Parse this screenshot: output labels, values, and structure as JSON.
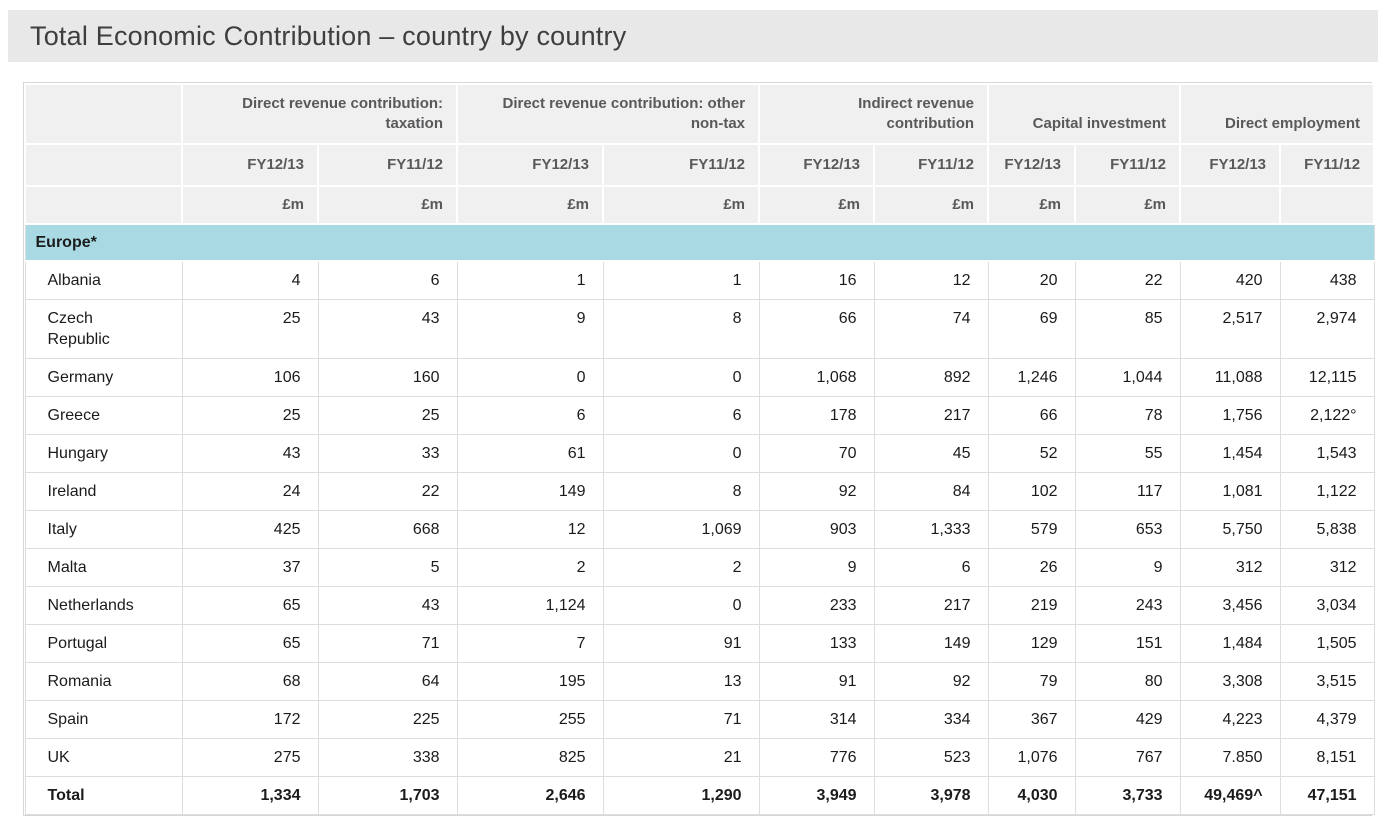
{
  "page_title": "Total Economic Contribution – country by country",
  "table": {
    "groups": [
      {
        "label": "Direct revenue contribution: taxation"
      },
      {
        "label": "Direct revenue contribution: other non-tax"
      },
      {
        "label": "Indirect revenue contribution"
      },
      {
        "label": "Capital investment"
      },
      {
        "label": "Direct employment"
      }
    ],
    "period_headers": [
      "FY12/13",
      "FY11/12",
      "FY12/13",
      "FY11/12",
      "FY12/13",
      "FY11/12",
      "FY12/13",
      "FY11/12",
      "FY12/13",
      "FY11/12"
    ],
    "unit_headers": [
      "£m",
      "£m",
      "£m",
      "£m",
      "£m",
      "£m",
      "£m",
      "£m",
      "",
      ""
    ],
    "section_label": "Europe*",
    "rows": [
      {
        "country": "Albania",
        "values": [
          "4",
          "6",
          "1",
          "1",
          "16",
          "12",
          "20",
          "22",
          "420",
          "438"
        ]
      },
      {
        "country": "Czech Republic",
        "values": [
          "25",
          "43",
          "9",
          "8",
          "66",
          "74",
          "69",
          "85",
          "2,517",
          "2,974"
        ]
      },
      {
        "country": "Germany",
        "values": [
          "106",
          "160",
          "0",
          "0",
          "1,068",
          "892",
          "1,246",
          "1,044",
          "11,088",
          "12,115"
        ]
      },
      {
        "country": "Greece",
        "values": [
          "25",
          "25",
          "6",
          "6",
          "178",
          "217",
          "66",
          "78",
          "1,756",
          "2,122°"
        ]
      },
      {
        "country": "Hungary",
        "values": [
          "43",
          "33",
          "61",
          "0",
          "70",
          "45",
          "52",
          "55",
          "1,454",
          "1,543"
        ]
      },
      {
        "country": "Ireland",
        "values": [
          "24",
          "22",
          "149",
          "8",
          "92",
          "84",
          "102",
          "117",
          "1,081",
          "1,122"
        ]
      },
      {
        "country": "Italy",
        "values": [
          "425",
          "668",
          "12",
          "1,069",
          "903",
          "1,333",
          "579",
          "653",
          "5,750",
          "5,838"
        ]
      },
      {
        "country": "Malta",
        "values": [
          "37",
          "5",
          "2",
          "2",
          "9",
          "6",
          "26",
          "9",
          "312",
          "312"
        ]
      },
      {
        "country": "Netherlands",
        "values": [
          "65",
          "43",
          "1,124",
          "0",
          "233",
          "217",
          "219",
          "243",
          "3,456",
          "3,034"
        ]
      },
      {
        "country": "Portugal",
        "values": [
          "65",
          "71",
          "7",
          "91",
          "133",
          "149",
          "129",
          "151",
          "1,484",
          "1,505"
        ]
      },
      {
        "country": "Romania",
        "values": [
          "68",
          "64",
          "195",
          "13",
          "91",
          "92",
          "79",
          "80",
          "3,308",
          "3,515"
        ]
      },
      {
        "country": "Spain",
        "values": [
          "172",
          "225",
          "255",
          "71",
          "314",
          "334",
          "367",
          "429",
          "4,223",
          "4,379"
        ]
      },
      {
        "country": "UK",
        "values": [
          "275",
          "338",
          "825",
          "21",
          "776",
          "523",
          "1,076",
          "767",
          "7.850",
          "8,151"
        ]
      }
    ],
    "total_row": {
      "label": "Total",
      "values": [
        "1,334",
        "1,703",
        "2,646",
        "1,290",
        "3,949",
        "3,978",
        "4,030",
        "3,733",
        "49,469^",
        "47,151"
      ]
    }
  },
  "colors": {
    "title_bar_bg": "#e8e8e8",
    "header_bg": "#f0f0f0",
    "section_band": "#a9dae3"
  }
}
